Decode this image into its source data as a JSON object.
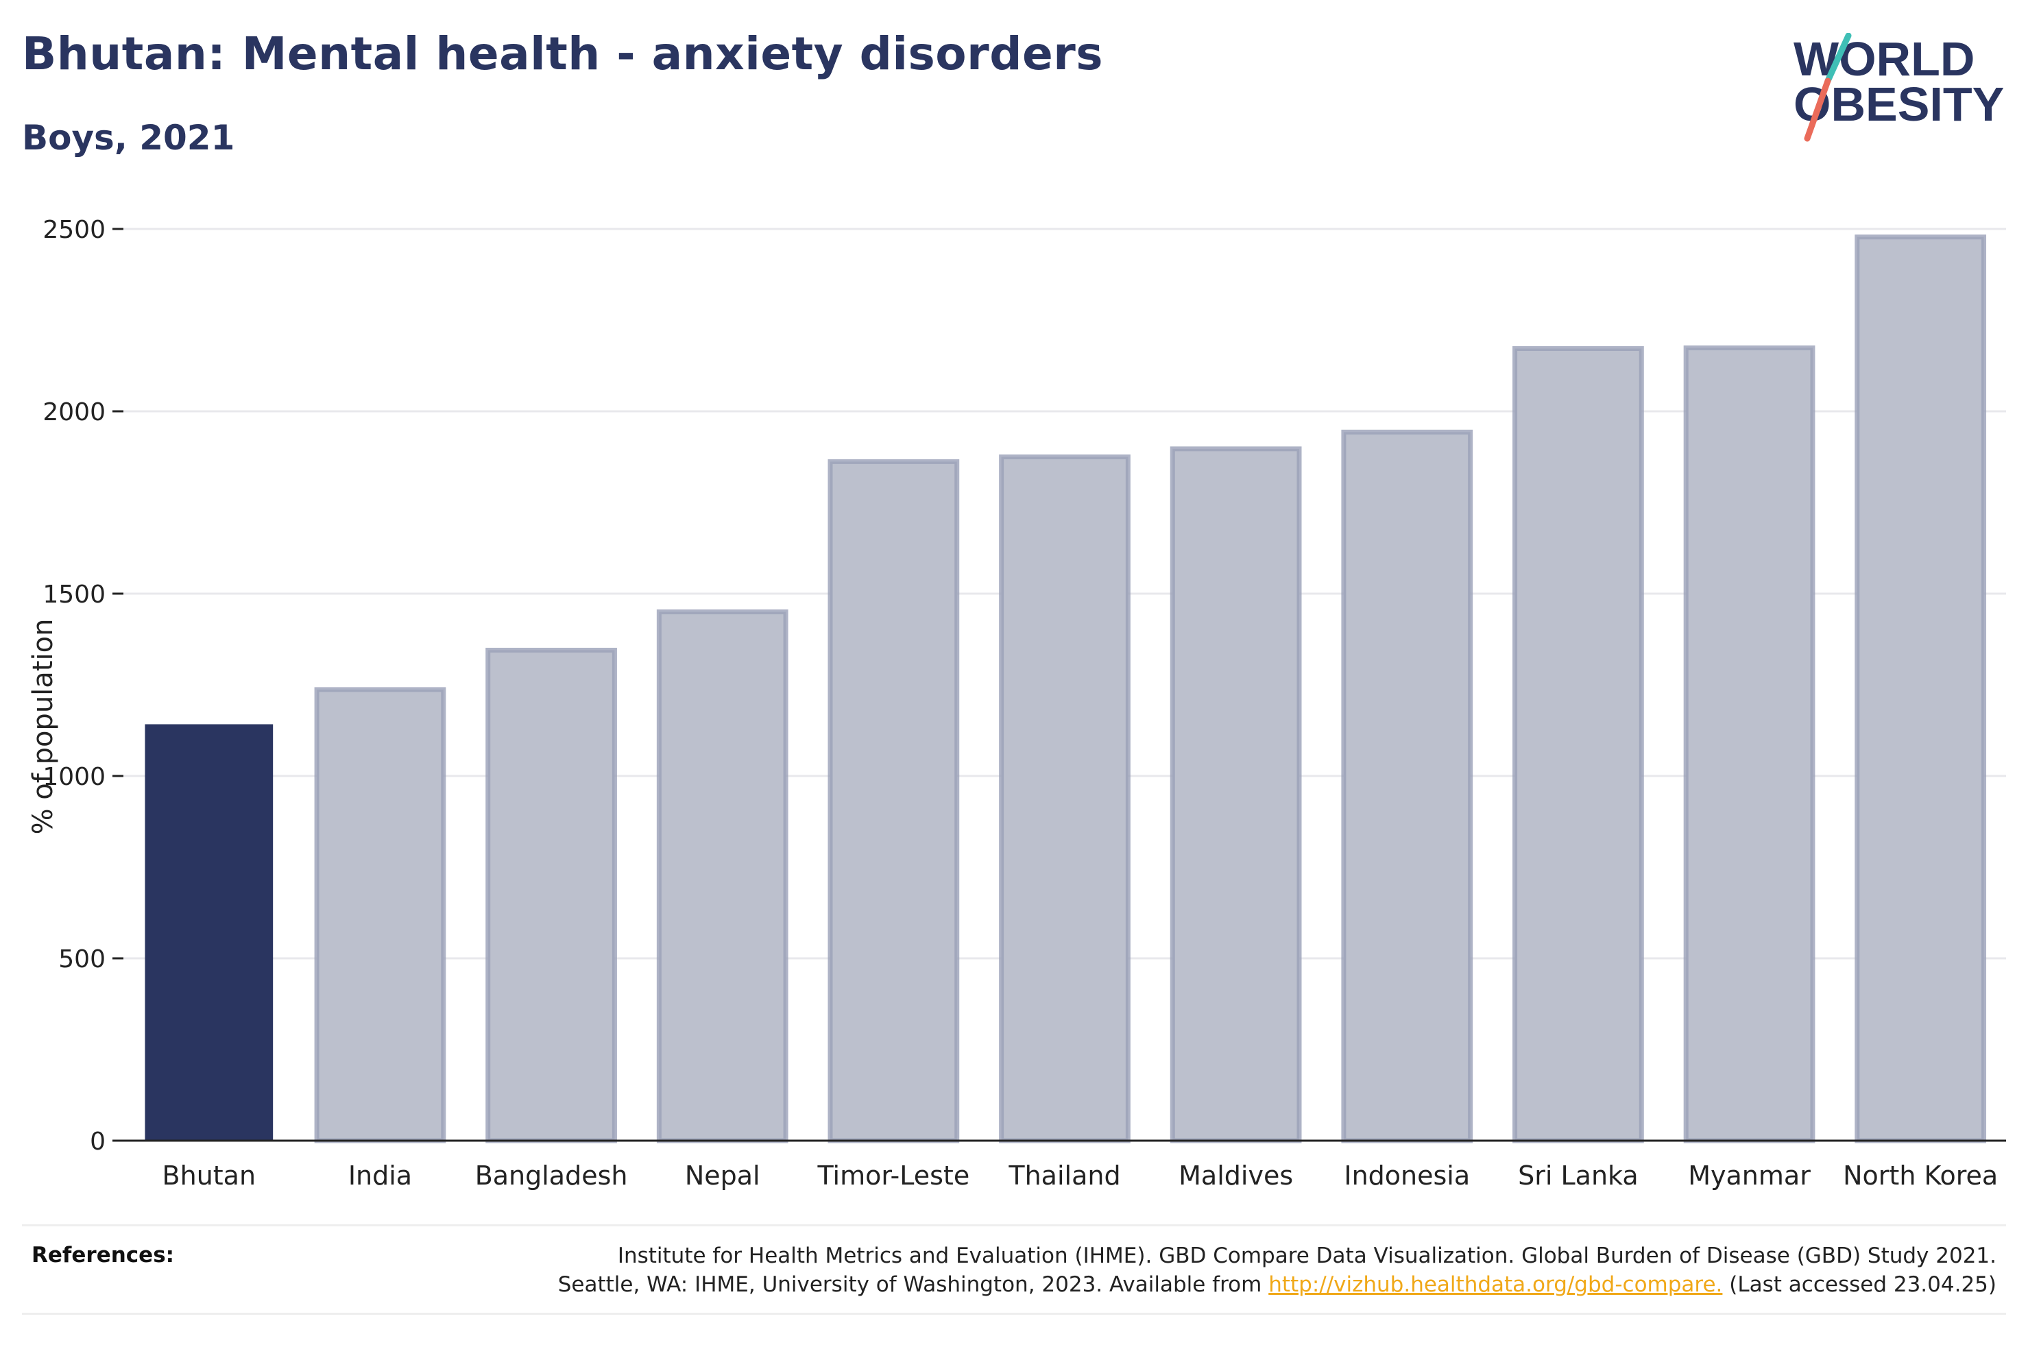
{
  "title": "Bhutan: Mental health - anxiety disorders",
  "subtitle": "Boys, 2021",
  "logo": {
    "line1": "WORLD",
    "line2": "OBESITY"
  },
  "colors": {
    "highlight": "#2a3560",
    "others": "#bcc0cd",
    "others_border": "#9aa0b8",
    "title": "#2a3560",
    "link": "#f0a818"
  },
  "references": {
    "label": "References:",
    "line1": "Institute for Health Metrics and Evaluation (IHME). GBD Compare Data Visualization. Global Burden of Disease (GBD) Study 2021.",
    "line2_prefix": "Seattle, WA: IHME, University of Washington, 2023. Available from ",
    "link": "http://vizhub.healthdata.org/gbd-compare.",
    "line2_suffix": " (Last accessed 23.04.25)"
  },
  "chart_data": {
    "type": "bar",
    "title": "Bhutan: Mental health - anxiety disorders",
    "subtitle": "Boys, 2021",
    "xlabel": "",
    "ylabel": "% of population",
    "ylim": [
      0,
      2500
    ],
    "yticks": [
      0,
      500,
      1000,
      1500,
      2000,
      2500
    ],
    "grid": true,
    "highlight": "Bhutan",
    "categories": [
      "Bhutan",
      "India",
      "Bangladesh",
      "Nepal",
      "Timor-Leste",
      "Thailand",
      "Maldives",
      "Indonesia",
      "Sri Lanka",
      "Myanmar",
      "North Korea"
    ],
    "values": [
      1140,
      1237,
      1345,
      1450,
      1862,
      1875,
      1897,
      1943,
      2172,
      2174,
      2478
    ]
  }
}
